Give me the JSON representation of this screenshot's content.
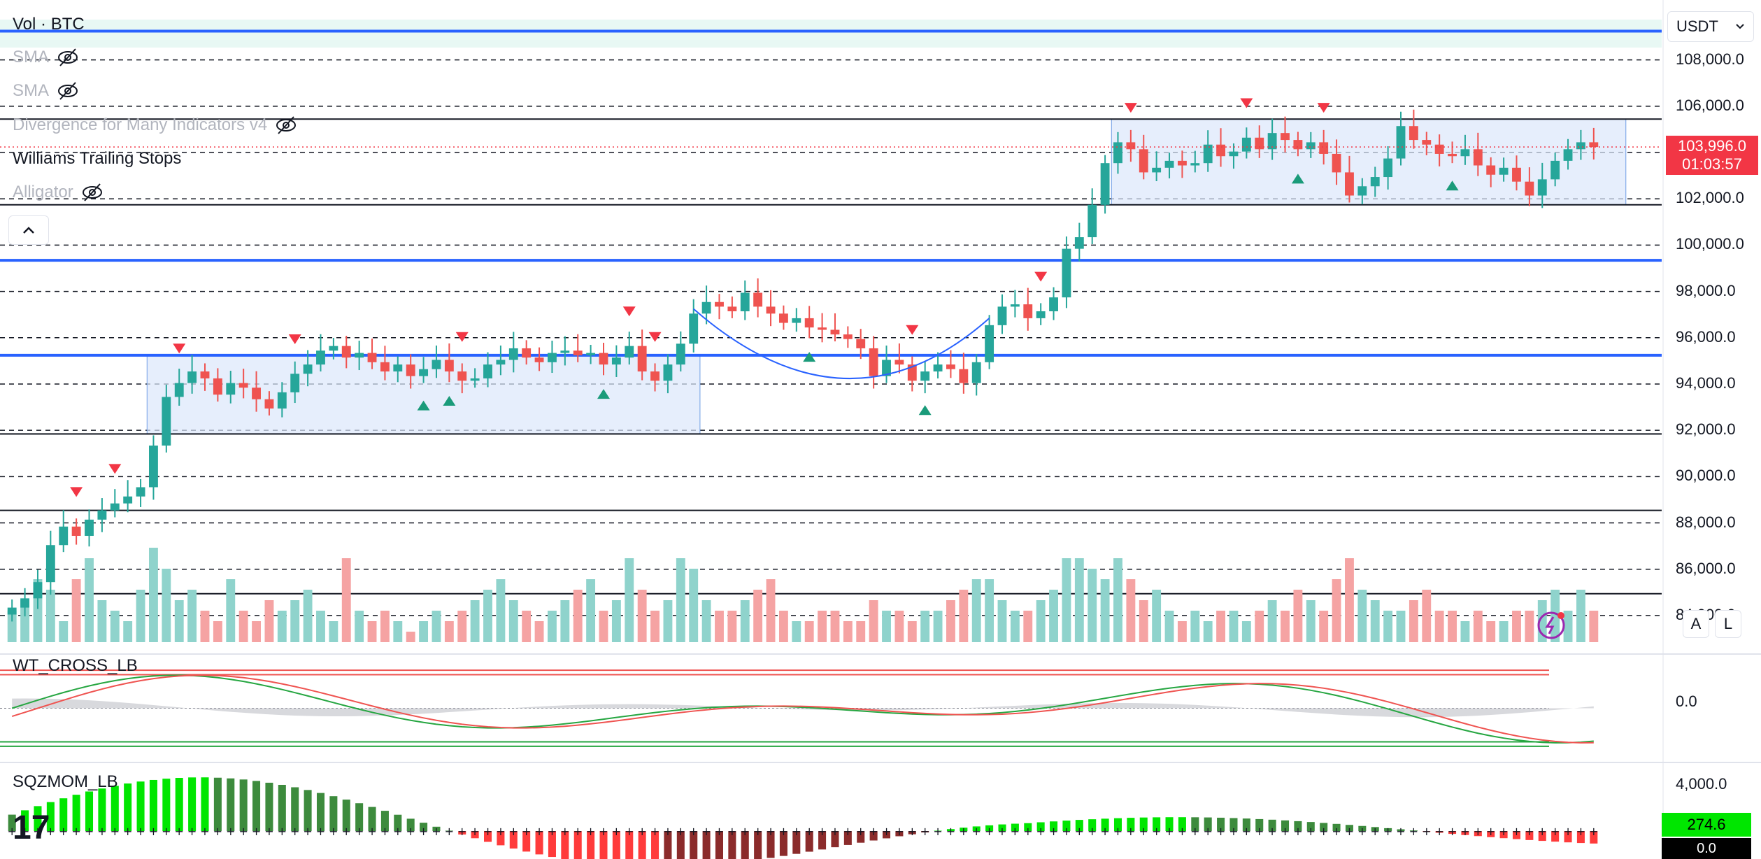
{
  "legend": {
    "volume": "Vol · BTC",
    "sma1": "SMA",
    "sma2": "SMA",
    "divergence": "Divergence for Many Indicators v4",
    "williams": "Williams Trailing Stops",
    "alligator": "Alligator"
  },
  "price_scale": {
    "currency": "USDT",
    "ticks": [
      "108,000.0",
      "106,000.0",
      "104,000.0",
      "102,000.0",
      "100,000.0",
      "98,000.0",
      "96,000.0",
      "94,000.0",
      "92,000.0",
      "90,000.0",
      "88,000.0",
      "86,000.0",
      "84,000.0"
    ],
    "last_price": "103,996.0",
    "countdown": "01:03:57",
    "auto_button": "A",
    "log_button": "L"
  },
  "panes": {
    "wt_cross": {
      "title": "WT_CROSS_LB",
      "zero_label": "0.0"
    },
    "sqzmom": {
      "title": "SQZMOM_LB",
      "top_label": "4,000.0",
      "value_label": "274.6",
      "bottom_label": "0.0"
    }
  },
  "colors": {
    "up": "#26a69a",
    "down": "#ef5350",
    "level_line": "#2962ff",
    "range_fill": "#dbe7fb"
  },
  "chart_data": {
    "type": "candlestick",
    "symbol": "BTC",
    "quote": "USDT",
    "ylim": [
      83000,
      109500
    ],
    "close_series": [
      84100,
      84500,
      85200,
      86800,
      87600,
      87200,
      87900,
      88300,
      88600,
      88900,
      89300,
      91100,
      93200,
      93800,
      94300,
      94000,
      93300,
      93800,
      93600,
      93100,
      92700,
      93400,
      94200,
      94600,
      95200,
      95400,
      94900,
      95100,
      94700,
      94300,
      94600,
      94100,
      94400,
      94800,
      94300,
      93900,
      94000,
      94600,
      94800,
      95300,
      94900,
      94700,
      95100,
      95200,
      95000,
      95100,
      94600,
      94900,
      95400,
      94300,
      93900,
      94600,
      95500,
      96800,
      97300,
      97100,
      96900,
      97700,
      97100,
      96800,
      96400,
      96600,
      96200,
      96100,
      95900,
      95700,
      95300,
      94100,
      94800,
      94600,
      93900,
      94300,
      94600,
      94400,
      93800,
      94700,
      96300,
      97100,
      97200,
      96600,
      96900,
      97500,
      99600,
      100100,
      101500,
      103300,
      104200,
      103900,
      102900,
      103100,
      103400,
      103200,
      103300,
      104100,
      103600,
      103800,
      104400,
      103900,
      104600,
      104300,
      103900,
      104200,
      103700,
      102900,
      101900,
      102300,
      102700,
      103500,
      104900,
      104300,
      104100,
      103700,
      103600,
      103900,
      103200,
      102800,
      103100,
      102500,
      101900,
      102600,
      103400,
      103900,
      104200,
      103996
    ],
    "volume_series": [
      3,
      4,
      6,
      5,
      2,
      6,
      8,
      4,
      3,
      2,
      5,
      9,
      7,
      4,
      5,
      3,
      2,
      6,
      3,
      2,
      4,
      3,
      4,
      5,
      3,
      2,
      8,
      3,
      2,
      3,
      2,
      1,
      2,
      3,
      2,
      3,
      4,
      5,
      6,
      4,
      3,
      2,
      3,
      4,
      5,
      6,
      3,
      4,
      8,
      5,
      3,
      4,
      8,
      7,
      4,
      3,
      3,
      4,
      5,
      6,
      3,
      2,
      2,
      3,
      3,
      2,
      2,
      4,
      3,
      3,
      2,
      3,
      3,
      4,
      5,
      6,
      6,
      4,
      3,
      3,
      4,
      5,
      8,
      8,
      7,
      6,
      8,
      6,
      4,
      5,
      3,
      2,
      3,
      2,
      3,
      3,
      2,
      3,
      4,
      3,
      5,
      4,
      3,
      6,
      8,
      5,
      4,
      3,
      3,
      4,
      5,
      3,
      3,
      2,
      3,
      2,
      2,
      3,
      3,
      4,
      5,
      3,
      5,
      3
    ],
    "range_boxes": [
      {
        "from": 11,
        "to": 53,
        "low": 91600,
        "high": 95000
      },
      {
        "from": 86,
        "to": 125,
        "low": 101500,
        "high": 105200
      }
    ],
    "horizontal_levels": [
      109000,
      99100,
      95000
    ],
    "wt_cross": {
      "ylim": [
        -80,
        80
      ]
    },
    "sqzmom": {
      "ylim": [
        -2000,
        4800
      ]
    }
  }
}
